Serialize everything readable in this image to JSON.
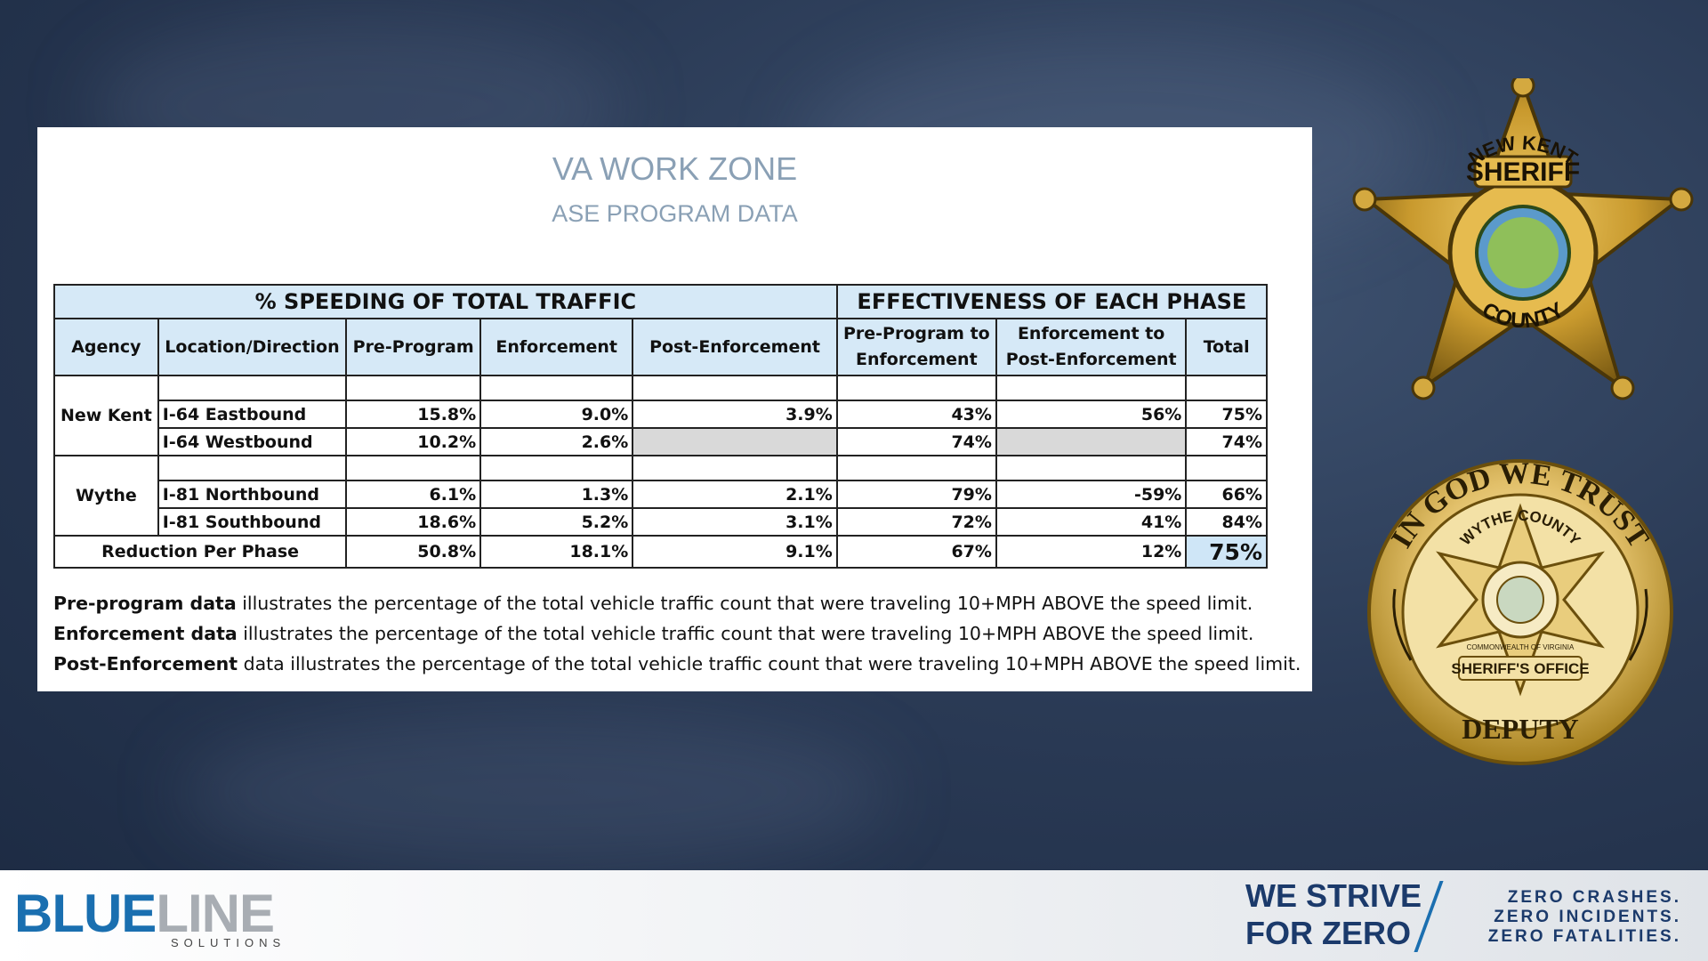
{
  "title": "VA WORK ZONE",
  "subtitle": "ASE PROGRAM DATA",
  "table": {
    "group_left": "% SPEEDING OF TOTAL TRAFFIC",
    "group_right": "EFFECTIVENESS OF EACH PHASE",
    "headers": [
      "Agency",
      "Location/Direction",
      "Pre-Program",
      "Enforcement",
      "Post-Enforcement",
      "Pre-Program to Enforcement",
      "Enforcement to Post-Enforcement",
      "Total"
    ],
    "groups": [
      {
        "agency": "New Kent",
        "rows": [
          {
            "location": "I-64 Eastbound",
            "pre": "15.8%",
            "enf": "9.0%",
            "post": "3.9%",
            "pre_enf": "43%",
            "enf_post": "56%",
            "total": "75%"
          },
          {
            "location": "I-64 Westbound",
            "pre": "10.2%",
            "enf": "2.6%",
            "post": "",
            "pre_enf": "74%",
            "enf_post": "",
            "total": "74%"
          }
        ]
      },
      {
        "agency": "Wythe",
        "rows": [
          {
            "location": "I-81 Northbound",
            "pre": "6.1%",
            "enf": "1.3%",
            "post": "2.1%",
            "pre_enf": "79%",
            "enf_post": "-59%",
            "total": "66%"
          },
          {
            "location": "I-81 Southbound",
            "pre": "18.6%",
            "enf": "5.2%",
            "post": "3.1%",
            "pre_enf": "72%",
            "enf_post": "41%",
            "total": "84%"
          }
        ]
      }
    ],
    "reduction": {
      "label": "Reduction Per Phase",
      "pre": "50.8%",
      "enf": "18.1%",
      "post": "9.1%",
      "pre_enf": "67%",
      "enf_post": "12%",
      "total": "75%"
    }
  },
  "notes": [
    {
      "bold": "Pre-program data",
      "text": " illustrates the percentage of the total vehicle traffic count that were traveling 10+MPH ABOVE the speed limit."
    },
    {
      "bold": "Enforcement data",
      "text": " illustrates the percentage of the total vehicle traffic count that were traveling 10+MPH ABOVE the speed limit."
    },
    {
      "bold": "Post-Enforcement",
      "text": " data illustrates the percentage of the total vehicle traffic count that were traveling 10+MPH ABOVE the speed limit."
    }
  ],
  "badge1": {
    "top": "SHERIFF",
    "ring": "NEW KENT",
    "bottom": "COUNTY"
  },
  "badge2": {
    "top": "IN GOD WE TRUST",
    "ring": "WYTHE COUNTY",
    "inner": "COMMONWEALTH OF VIRGINIA",
    "banner": "SHERIFF'S OFFICE",
    "bottom": "DEPUTY"
  },
  "footer": {
    "logo_a": "BLUE",
    "logo_b": "LINE",
    "logo_sub": "SOLUTIONS",
    "strive_1": "WE STRIVE",
    "strive_2": "FOR ZERO",
    "zero_1": "ZERO CRASHES.",
    "zero_2": "ZERO INCIDENTS.",
    "zero_3": "ZERO FATALITIES."
  },
  "colors": {
    "header_fill": "#d6e9f7",
    "title": "#8aa0b5",
    "brand_blue": "#1a6fb0",
    "navy": "#1b3a6b",
    "gold": "#c99a2e"
  }
}
